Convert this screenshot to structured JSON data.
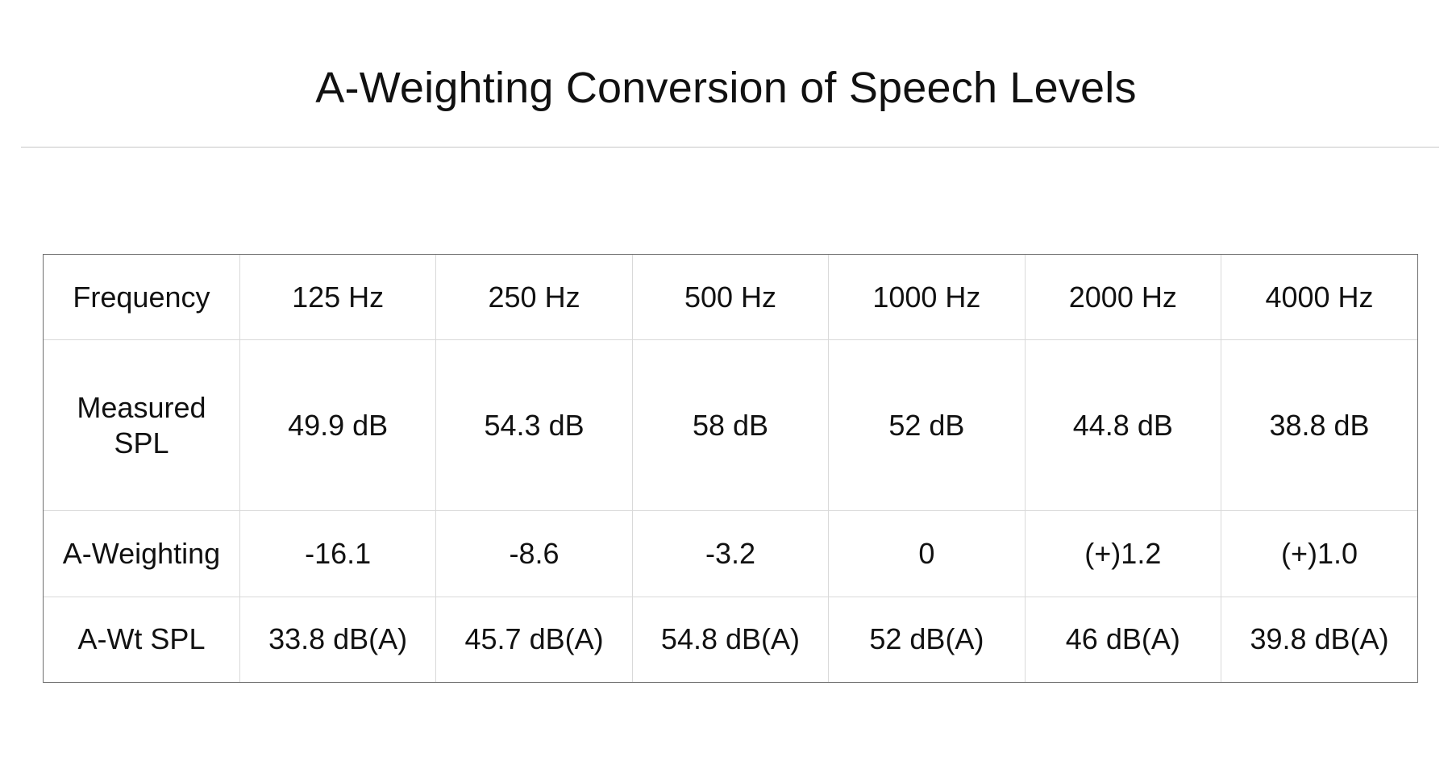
{
  "title": "A-Weighting Conversion of Speech Levels",
  "colors": {
    "measured": "#e8412a",
    "a_weighted": "#1f3ff5",
    "text": "#111111"
  },
  "table": {
    "header": {
      "label": "Frequency",
      "cells": [
        "125 Hz",
        "250 Hz",
        "500 Hz",
        "1000 Hz",
        "2000 Hz",
        "4000 Hz"
      ]
    },
    "measured": {
      "label_line1": "Measured",
      "label_line2": "SPL",
      "cells": [
        "49.9 dB",
        "54.3 dB",
        "58 dB",
        "52 dB",
        "44.8 dB",
        "38.8 dB"
      ]
    },
    "weighting": {
      "label": "A-Weighting",
      "cells": [
        "-16.1",
        "-8.6",
        "-3.2",
        "0",
        "(+)1.2",
        "(+)1.0"
      ]
    },
    "awt": {
      "label": "A-Wt SPL",
      "cells": [
        "33.8 dB(A)",
        "45.7 dB(A)",
        "54.8 dB(A)",
        "52 dB(A)",
        "46 dB(A)",
        "39.8 dB(A)"
      ]
    }
  }
}
